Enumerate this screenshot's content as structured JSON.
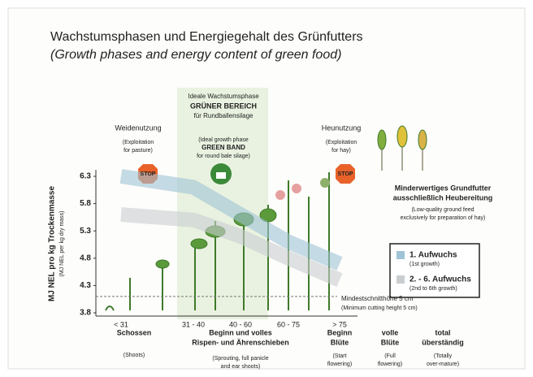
{
  "chart_data": {
    "type": "band",
    "title": "Wachstumsphasen und Energiegehalt des Grünfutters",
    "subtitle": "(Growth phases and energy content of green food)",
    "y_label": "MJ NEL pro kg Trockenmasse",
    "y_label_en": "(MJ NEL per kg dry mass)",
    "categories": [
      "< 31",
      "31 - 40",
      "40 - 60",
      "60 - 75",
      "> 75"
    ],
    "series": [
      {
        "name": "1. Aufwuchs",
        "legend_note": "(1st growth)",
        "color": "#9fc3d6",
        "values": [
          6.3,
          6.1,
          5.6,
          5.1,
          4.7
        ]
      },
      {
        "name": "2. - 6. Aufwuchs",
        "legend_note": "(2nd to 6th growth)",
        "color": "#c9cdd0",
        "values": [
          5.6,
          5.5,
          5.2,
          4.8,
          4.4
        ]
      }
    ],
    "ylim": [
      3.8,
      6.3
    ],
    "yticks": [
      3.8,
      4.3,
      4.8,
      5.3,
      5.8,
      6.3
    ],
    "threshold": 4.1,
    "annotations": [
      "Ideale Wachstumsphase",
      "GRÜNER BEREICH",
      "für Rundballensilage",
      "(Ideal growth phase",
      "GREEN BAND",
      "for round bale silage)",
      "Weidenutzung",
      "(Exploitation",
      "for pasture)",
      "Heunutzung",
      "(Exploitation",
      "for hay)",
      "Minderwertiges Grundfutter",
      "ausschließlich Heubereitung",
      "(Low-quality ground feed",
      "exclusively for preparation of hay)",
      "Mindestschnitthöhe 5 cm",
      "(Minimum cutting height 5 cm)",
      "Schossen",
      "(Shoots)",
      "Beginn und volles",
      "Rispen- und Ährenschieben",
      "(Sprouting, full panicle",
      "and ear shoots)",
      "Beginn",
      "Blüte",
      "(Start",
      "flowering)",
      "volle",
      "Blüte",
      "(Full",
      "flowering)",
      "total",
      "überständig",
      "(Totally",
      "over-mature)",
      "STOP",
      "STOP"
    ]
  }
}
